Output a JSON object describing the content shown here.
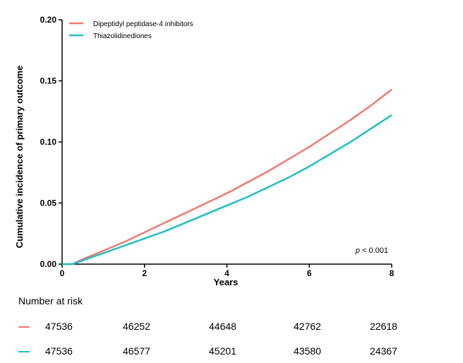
{
  "chart_data": {
    "type": "line",
    "title": "",
    "xlabel": "Years",
    "ylabel": "Cumulative incidence of primary outcome",
    "xlim": [
      0,
      8
    ],
    "ylim": [
      0,
      0.2
    ],
    "xticks": [
      "0",
      "2",
      "4",
      "6",
      "8"
    ],
    "yticks": [
      "0.00",
      "0.05",
      "0.10",
      "0.15",
      "0.20"
    ],
    "grid": false,
    "legend_position": "top-left",
    "annotation": {
      "italic": "p",
      "text": " < 0.001"
    },
    "series": [
      {
        "name": "Dipeptidyl peptidase-4 inhibitors",
        "color": "#F07A6E",
        "x": [
          0,
          0.25,
          0.5,
          1,
          1.5,
          2,
          2.5,
          3,
          3.5,
          4,
          4.5,
          5,
          5.5,
          6,
          6.5,
          7,
          7.5,
          8
        ],
        "y": [
          0,
          0,
          0.004,
          0.011,
          0.018,
          0.026,
          0.034,
          0.042,
          0.05,
          0.058,
          0.067,
          0.076,
          0.086,
          0.096,
          0.107,
          0.118,
          0.13,
          0.143
        ]
      },
      {
        "name": "Thiazolidinediones",
        "color": "#1FBFC3",
        "x": [
          0,
          0.25,
          0.5,
          1,
          1.5,
          2,
          2.5,
          3,
          3.5,
          4,
          4.5,
          5,
          5.5,
          6,
          6.5,
          7,
          7.5,
          8
        ],
        "y": [
          0,
          0,
          0.003,
          0.009,
          0.015,
          0.021,
          0.027,
          0.034,
          0.041,
          0.048,
          0.055,
          0.063,
          0.071,
          0.08,
          0.09,
          0.1,
          0.111,
          0.122
        ]
      }
    ]
  },
  "risk_table": {
    "title": "Number at risk",
    "rows": [
      {
        "color": "#F07A6E",
        "values": [
          "47536",
          "46252",
          "44648",
          "42762",
          "22618"
        ]
      },
      {
        "color": "#1FBFC3",
        "values": [
          "47536",
          "46577",
          "45201",
          "43580",
          "24367"
        ]
      }
    ]
  }
}
